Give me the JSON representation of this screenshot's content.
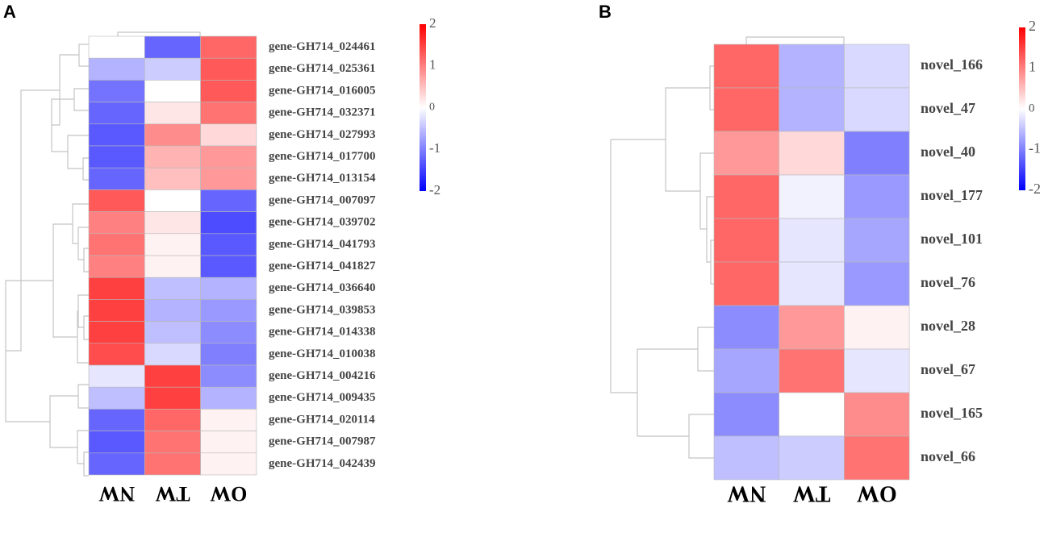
{
  "chart_data": [
    {
      "type": "heatmap",
      "panel": "A",
      "columns": [
        "NW",
        "TW",
        "OW"
      ],
      "rows": [
        "gene-GH714_024461",
        "gene-GH714_025361",
        "gene-GH714_016005",
        "gene-GH714_032371",
        "gene-GH714_027993",
        "gene-GH714_017700",
        "gene-GH714_013154",
        "gene-GH714_007097",
        "gene-GH714_039702",
        "gene-GH714_041793",
        "gene-GH714_041827",
        "gene-GH714_036640",
        "gene-GH714_039853",
        "gene-GH714_014338",
        "gene-GH714_010038",
        "gene-GH714_004216",
        "gene-GH714_009435",
        "gene-GH714_020114",
        "gene-GH714_007987",
        "gene-GH714_042439"
      ],
      "values": [
        [
          0.0,
          -1.2,
          1.2
        ],
        [
          -0.6,
          -0.4,
          1.3
        ],
        [
          -1.1,
          0.0,
          1.3
        ],
        [
          -1.2,
          0.2,
          1.1
        ],
        [
          -1.3,
          0.9,
          0.3
        ],
        [
          -1.3,
          0.6,
          0.8
        ],
        [
          -1.2,
          0.5,
          0.8
        ],
        [
          1.3,
          0.0,
          -1.2
        ],
        [
          1.0,
          0.2,
          -1.4
        ],
        [
          1.1,
          0.1,
          -1.3
        ],
        [
          1.0,
          0.1,
          -1.3
        ],
        [
          1.5,
          -0.5,
          -0.6
        ],
        [
          1.5,
          -0.6,
          -0.8
        ],
        [
          1.5,
          -0.5,
          -0.9
        ],
        [
          1.4,
          -0.3,
          -1.0
        ],
        [
          -0.2,
          1.5,
          -0.9
        ],
        [
          -0.5,
          1.5,
          -0.6
        ],
        [
          -1.2,
          1.2,
          0.1
        ],
        [
          -1.3,
          1.1,
          0.1
        ],
        [
          -1.2,
          1.1,
          0.1
        ]
      ],
      "legend": {
        "ticks": [
          "2",
          "1",
          "0",
          "-1",
          "-2"
        ],
        "range": [
          -2,
          2
        ],
        "low_color": "#0000ff",
        "mid_color": "#ffffff",
        "high_color": "#ff0000"
      }
    },
    {
      "type": "heatmap",
      "panel": "B",
      "columns": [
        "NW",
        "TW",
        "OW"
      ],
      "rows": [
        "novel_166",
        "novel_47",
        "novel_40",
        "novel_177",
        "novel_101",
        "novel_76",
        "novel_28",
        "novel_67",
        "novel_165",
        "novel_66"
      ],
      "values": [
        [
          1.2,
          -0.6,
          -0.3
        ],
        [
          1.2,
          -0.6,
          -0.3
        ],
        [
          0.8,
          0.3,
          -1.0
        ],
        [
          1.2,
          -0.1,
          -0.8
        ],
        [
          1.2,
          -0.2,
          -0.7
        ],
        [
          1.2,
          -0.2,
          -0.8
        ],
        [
          -0.9,
          0.8,
          0.1
        ],
        [
          -0.7,
          1.1,
          -0.2
        ],
        [
          -0.9,
          0.0,
          0.9
        ],
        [
          -0.5,
          -0.4,
          1.1
        ]
      ],
      "legend": {
        "ticks": [
          "2",
          "1",
          "0",
          "-1",
          "-2"
        ],
        "range": [
          -2,
          2
        ],
        "low_color": "#0000ff",
        "mid_color": "#ffffff",
        "high_color": "#ff0000"
      }
    }
  ]
}
